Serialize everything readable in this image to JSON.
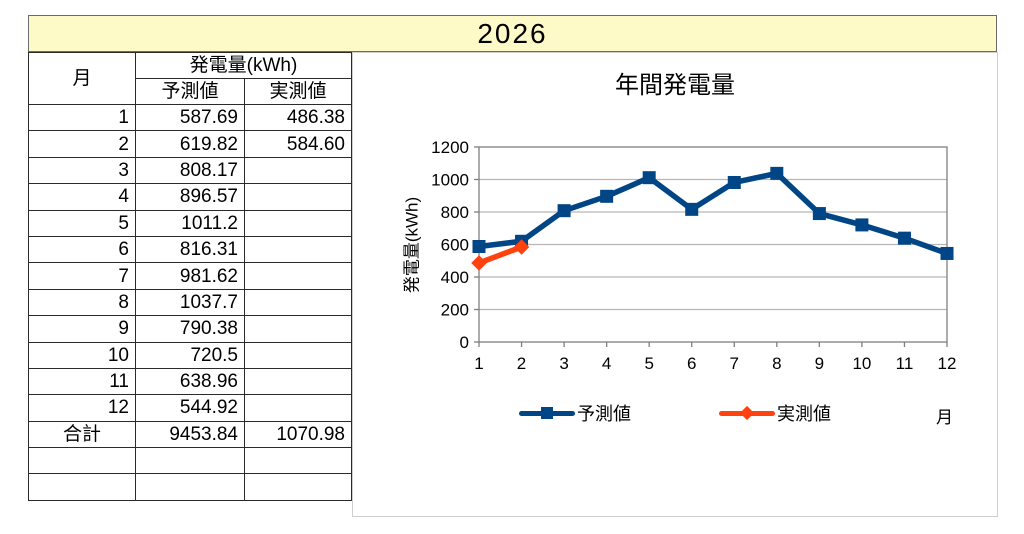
{
  "banner": {
    "year": "2026"
  },
  "table": {
    "col_month": "月",
    "col_group": "発電量(kWh)",
    "col_forecast": "予測値",
    "col_actual": "実測値",
    "rows": [
      [
        "1",
        "587.69",
        "486.38"
      ],
      [
        "2",
        "619.82",
        "584.60"
      ],
      [
        "3",
        "808.17",
        ""
      ],
      [
        "4",
        "896.57",
        ""
      ],
      [
        "5",
        "1011.2",
        ""
      ],
      [
        "6",
        "816.31",
        ""
      ],
      [
        "7",
        "981.62",
        ""
      ],
      [
        "8",
        "1037.7",
        ""
      ],
      [
        "9",
        "790.38",
        ""
      ],
      [
        "10",
        "720.5",
        ""
      ],
      [
        "11",
        "638.96",
        ""
      ],
      [
        "12",
        "544.92",
        ""
      ]
    ],
    "total_row": [
      "合計",
      "9453.84",
      "1070.98"
    ],
    "empty_row_count": 2
  },
  "chart_data": {
    "type": "line",
    "title": "年間発電量",
    "xlabel": "月",
    "ylabel": "発電量(kWh)",
    "categories": [
      1,
      2,
      3,
      4,
      5,
      6,
      7,
      8,
      9,
      10,
      11,
      12
    ],
    "series": [
      {
        "name": "予測値",
        "color": "#004586",
        "marker": "square",
        "values": [
          587.69,
          619.82,
          808.17,
          896.57,
          1011.2,
          816.31,
          981.62,
          1037.7,
          790.38,
          720.5,
          638.96,
          544.92
        ]
      },
      {
        "name": "実測値",
        "color": "#FF420E",
        "marker": "diamond",
        "values": [
          486.38,
          584.6,
          null,
          null,
          null,
          null,
          null,
          null,
          null,
          null,
          null,
          null
        ]
      }
    ],
    "ylim": [
      0,
      1200
    ],
    "ytick_step": 200,
    "grid": true,
    "legend_position": "bottom"
  },
  "colors": {
    "banner_bg": "#FDFAC8",
    "grid": "#b6b6b6",
    "axis": "#7f7f7f",
    "forecast": "#004586",
    "actual": "#FF420E"
  }
}
